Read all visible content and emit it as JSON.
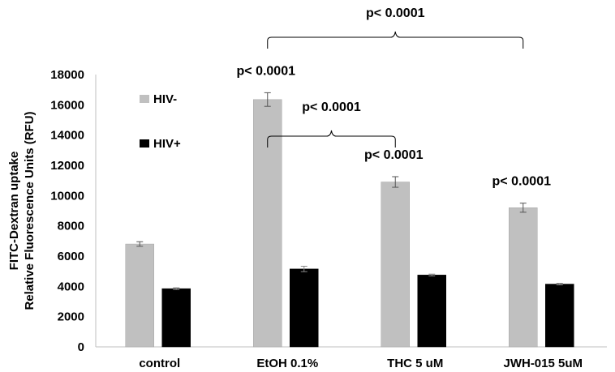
{
  "chart_data": {
    "type": "bar",
    "categories": [
      "control",
      "EtOH 0.1%",
      "THC 5 uM",
      "JWH-015 5uM"
    ],
    "series": [
      {
        "name": "HIV-",
        "color": "#c0c0c0",
        "values": [
          6800,
          16350,
          10900,
          9200
        ],
        "errors": [
          150,
          450,
          350,
          300
        ]
      },
      {
        "name": "HIV+",
        "color": "#000000",
        "values": [
          3850,
          5150,
          4750,
          4150
        ],
        "errors": [
          60,
          180,
          60,
          50
        ]
      }
    ],
    "ylabel_lines": [
      "FITC-Dextran uptake",
      "Relative Fluorescence Units (RFU)"
    ],
    "ylim": [
      0,
      18000
    ],
    "yticks": [
      0,
      2000,
      4000,
      6000,
      8000,
      10000,
      12000,
      14000,
      16000,
      18000
    ],
    "grid": false,
    "legend_position": "top-left",
    "annotations": [
      {
        "text": "p< 0.0001",
        "kind": "bar-top",
        "category": 1
      },
      {
        "text": "p< 0.0001",
        "kind": "bar-top",
        "category": 2
      },
      {
        "text": "p< 0.0001",
        "kind": "bar-top",
        "category": 3
      },
      {
        "text": "p< 0.0001",
        "kind": "bracket",
        "from": 1,
        "to": 2
      },
      {
        "text": "p< 0.0001",
        "kind": "bracket",
        "from": 1,
        "to": 3
      }
    ]
  }
}
